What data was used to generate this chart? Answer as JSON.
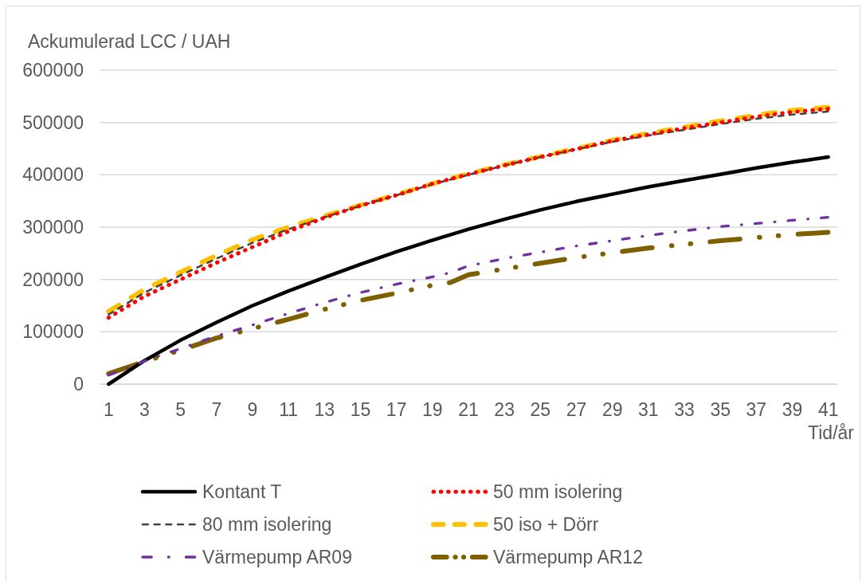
{
  "chart_data": {
    "type": "line",
    "ylabel": "Ackumulerad LCC / UAH",
    "xlabel": "Tid/år",
    "x": [
      1,
      3,
      5,
      7,
      9,
      11,
      13,
      15,
      17,
      19,
      21,
      23,
      25,
      27,
      29,
      31,
      33,
      35,
      37,
      39,
      41
    ],
    "xlim": [
      0.5,
      41.5
    ],
    "xticks": [
      1,
      3,
      5,
      7,
      9,
      11,
      13,
      15,
      17,
      19,
      21,
      23,
      25,
      27,
      29,
      31,
      33,
      35,
      37,
      39,
      41
    ],
    "ylim": [
      0,
      600000
    ],
    "yticks": [
      0,
      100000,
      200000,
      300000,
      400000,
      500000,
      600000
    ],
    "grid": "y",
    "legend": "bottom",
    "series": [
      {
        "name": "Kontant T",
        "color": "#000000",
        "line_style": "solid",
        "values": [
          0,
          45000,
          84000,
          118000,
          150000,
          178000,
          204000,
          229000,
          253000,
          275000,
          296000,
          315000,
          333000,
          349000,
          363000,
          377000,
          389000,
          401000,
          413000,
          424000,
          434000
        ]
      },
      {
        "name": "50 mm isolering",
        "color": "#ff0000",
        "line_style": "dotted",
        "values": [
          127000,
          168000,
          200000,
          232000,
          262000,
          292000,
          318000,
          341000,
          361000,
          383000,
          401000,
          418000,
          434000,
          449000,
          465000,
          477000,
          489000,
          500000,
          511000,
          520000,
          526000
        ]
      },
      {
        "name": "80 mm isolering",
        "color": "#404040",
        "line_style": "dashed",
        "values": [
          133000,
          175000,
          208000,
          240000,
          270000,
          296000,
          319000,
          341000,
          361000,
          382000,
          400000,
          418000,
          434000,
          449000,
          463000,
          475000,
          486000,
          497000,
          507000,
          515000,
          521000
        ]
      },
      {
        "name": "50 iso + Dörr",
        "color": "#ffc000",
        "line_style": "dashed",
        "values": [
          139000,
          181000,
          214000,
          246000,
          276000,
          300000,
          321000,
          342000,
          362000,
          383000,
          402000,
          419000,
          435000,
          450000,
          466000,
          479000,
          491000,
          503000,
          514000,
          523000,
          529000
        ]
      },
      {
        "name": "Värmepump AR09",
        "color": "#7030a0",
        "line_style": "dashdot",
        "x": [
          1,
          3,
          5,
          7,
          9,
          11,
          13,
          15,
          17,
          19,
          20,
          21,
          23,
          25,
          27,
          29,
          31,
          33,
          35,
          37,
          39,
          41
        ],
        "values": [
          17000,
          44000,
          68000,
          92000,
          113000,
          135000,
          156000,
          175000,
          191000,
          205000,
          213000,
          226000,
          240000,
          252000,
          264000,
          274000,
          284000,
          293000,
          301000,
          307000,
          313000,
          319000
        ]
      },
      {
        "name": "Värmepump AR12",
        "color": "#7f6000",
        "line_style": "longdashdotdot",
        "x": [
          1,
          3,
          5,
          7,
          9,
          11,
          13,
          15,
          17,
          19,
          20,
          21,
          23,
          25,
          27,
          29,
          31,
          33,
          35,
          37,
          39,
          41
        ],
        "values": [
          20000,
          43000,
          65000,
          88000,
          106000,
          124000,
          143000,
          160000,
          174000,
          189000,
          194000,
          209000,
          220000,
          231000,
          242000,
          251000,
          260000,
          267000,
          274000,
          280000,
          286000,
          290000
        ]
      }
    ]
  }
}
